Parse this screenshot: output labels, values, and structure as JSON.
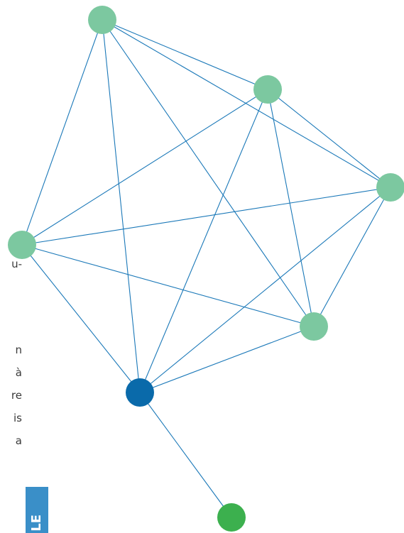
{
  "text_fragments": [
    "u-",
    "n",
    "à",
    "re",
    "is",
    "a"
  ],
  "side_tab": {
    "label": "LE"
  },
  "colors": {
    "edge": "#1a78b8",
    "node_light": "#7cc8a0",
    "node_dark": "#0a6aaa",
    "node_green": "#3cb04e",
    "tab_background": "#3a8fc8"
  },
  "network": {
    "nodes": [
      {
        "id": "n1",
        "style": "light"
      },
      {
        "id": "n2",
        "style": "light"
      },
      {
        "id": "n3",
        "style": "light"
      },
      {
        "id": "n4",
        "style": "light"
      },
      {
        "id": "n5",
        "style": "light"
      },
      {
        "id": "n6",
        "style": "dark"
      },
      {
        "id": "n7",
        "style": "green"
      }
    ],
    "edges": [
      [
        "n1",
        "n2"
      ],
      [
        "n1",
        "n3"
      ],
      [
        "n1",
        "n4"
      ],
      [
        "n1",
        "n5"
      ],
      [
        "n1",
        "n6"
      ],
      [
        "n2",
        "n3"
      ],
      [
        "n2",
        "n4"
      ],
      [
        "n2",
        "n5"
      ],
      [
        "n2",
        "n6"
      ],
      [
        "n3",
        "n4"
      ],
      [
        "n3",
        "n5"
      ],
      [
        "n3",
        "n6"
      ],
      [
        "n4",
        "n5"
      ],
      [
        "n4",
        "n6"
      ],
      [
        "n5",
        "n6"
      ],
      [
        "n6",
        "n7"
      ]
    ]
  }
}
